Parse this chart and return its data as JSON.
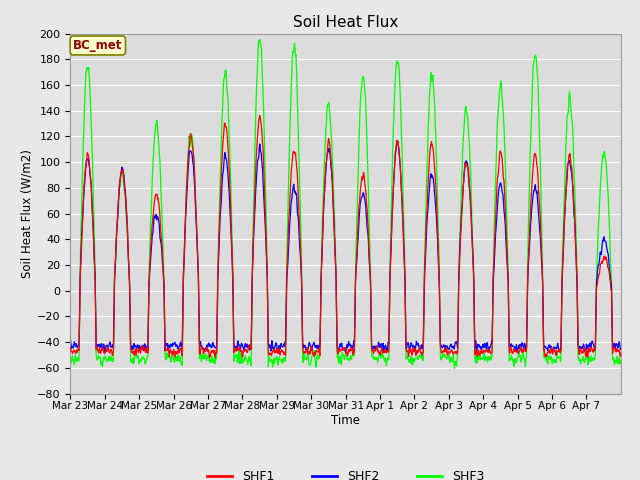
{
  "title": "Soil Heat Flux",
  "ylabel": "Soil Heat Flux (W/m2)",
  "xlabel": "Time",
  "ylim": [
    -80,
    200
  ],
  "yticks": [
    -80,
    -60,
    -40,
    -20,
    0,
    20,
    40,
    60,
    80,
    100,
    120,
    140,
    160,
    180,
    200
  ],
  "xtick_labels": [
    "Mar 23",
    "Mar 24",
    "Mar 25",
    "Mar 26",
    "Mar 27",
    "Mar 28",
    "Mar 29",
    "Mar 30",
    "Mar 31",
    "Apr 1",
    "Apr 2",
    "Apr 3",
    "Apr 4",
    "Apr 5",
    "Apr 6",
    "Apr 7"
  ],
  "fig_bg_color": "#e8e8e8",
  "plot_bg_color": "#dcdcdc",
  "grid_color": "#ffffff",
  "legend_label": "BC_met",
  "series": [
    "SHF1",
    "SHF2",
    "SHF3"
  ],
  "colors": [
    "red",
    "blue",
    "lime"
  ],
  "linewidth": 0.9,
  "n_days": 16,
  "pts_per_day": 96,
  "peaks_shf1": [
    105,
    95,
    75,
    120,
    130,
    135,
    110,
    115,
    90,
    115,
    115,
    100,
    105,
    105,
    105,
    25
  ],
  "peaks_shf2": [
    105,
    95,
    60,
    110,
    105,
    110,
    80,
    110,
    75,
    115,
    90,
    100,
    82,
    80,
    100,
    40
  ],
  "peaks_shf3": [
    175,
    90,
    130,
    122,
    170,
    195,
    190,
    145,
    165,
    180,
    170,
    140,
    160,
    185,
    150,
    108
  ],
  "night_shf1": -47,
  "night_shf2": -43,
  "night_shf3": -53
}
